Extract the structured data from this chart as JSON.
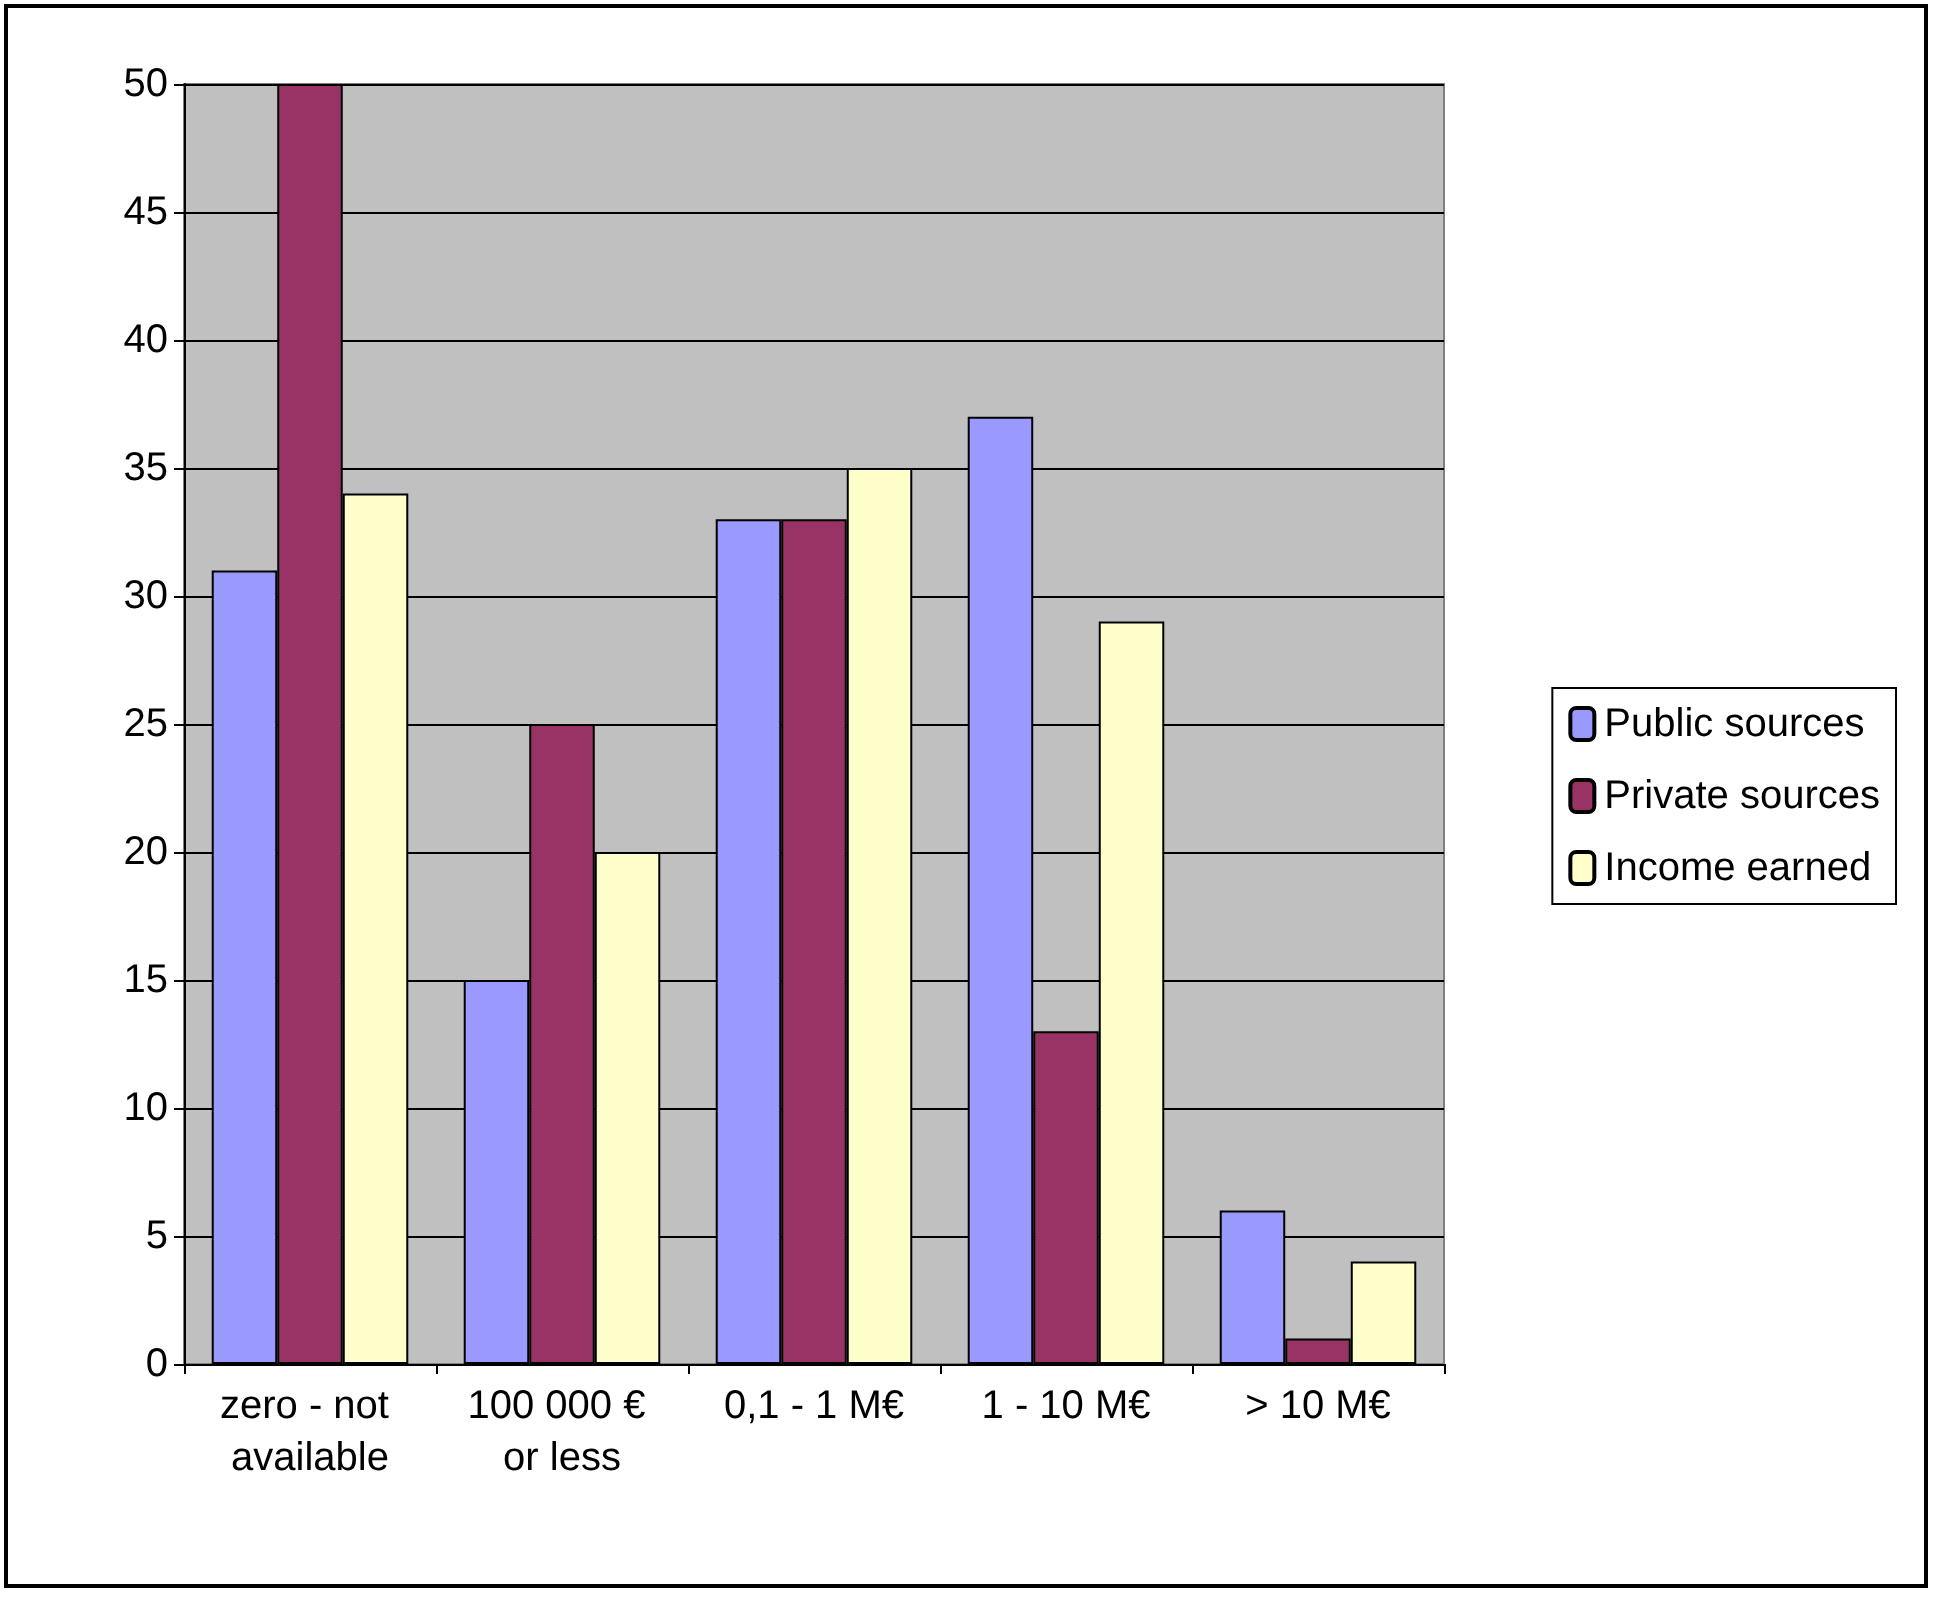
{
  "chart_data": {
    "type": "bar",
    "categories": [
      "zero - not available",
      "100 000 € or less",
      "0,1 - 1 M€",
      "1 - 10 M€",
      "> 10 M€"
    ],
    "series": [
      {
        "name": "Public sources",
        "color": "#9999ff",
        "values": [
          31,
          15,
          33,
          37,
          6
        ]
      },
      {
        "name": "Private sources",
        "color": "#993366",
        "values": [
          50,
          25,
          33,
          13,
          1
        ]
      },
      {
        "name": "Income earned",
        "color": "#ffffcc",
        "values": [
          34,
          20,
          35,
          29,
          4
        ]
      }
    ],
    "ylim": [
      0,
      50
    ],
    "yticks": [
      0,
      5,
      10,
      15,
      20,
      25,
      30,
      35,
      40,
      45,
      50
    ],
    "grid": "y",
    "legend": "right"
  }
}
